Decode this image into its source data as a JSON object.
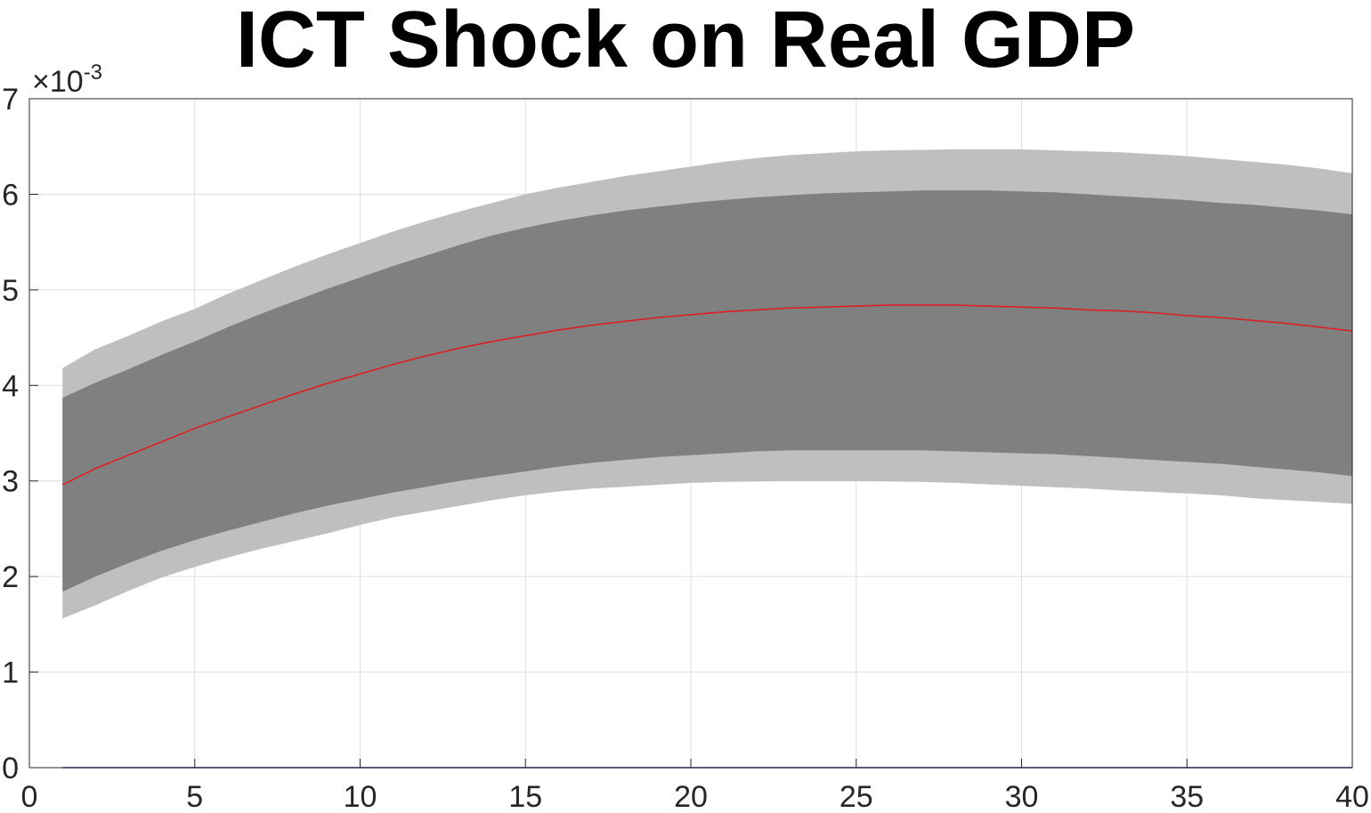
{
  "chart_data": {
    "type": "area",
    "title": "ICT Shock on Real GDP",
    "xlabel": "",
    "ylabel": "",
    "xlim": [
      0,
      40
    ],
    "ylim": [
      0,
      7
    ],
    "y_exponent_base": "×10",
    "y_exponent_power": "-3",
    "y_scale": 0.001,
    "grid": true,
    "x_ticks": [
      "0",
      "5",
      "10",
      "15",
      "20",
      "25",
      "30",
      "35",
      "40"
    ],
    "y_ticks": [
      "0",
      "1",
      "2",
      "3",
      "4",
      "5",
      "6",
      "7"
    ],
    "x": [
      1,
      2,
      3,
      4,
      5,
      6,
      7,
      8,
      9,
      10,
      11,
      12,
      13,
      14,
      15,
      16,
      17,
      18,
      19,
      20,
      21,
      22,
      23,
      24,
      25,
      26,
      27,
      28,
      29,
      30,
      31,
      32,
      33,
      34,
      35,
      36,
      37,
      38,
      39,
      40
    ],
    "series": [
      {
        "role": "outer_band",
        "color": "#bfbfbf",
        "lower": [
          1.56,
          1.7,
          1.85,
          1.99,
          2.1,
          2.2,
          2.29,
          2.37,
          2.45,
          2.54,
          2.62,
          2.68,
          2.74,
          2.8,
          2.85,
          2.89,
          2.92,
          2.94,
          2.96,
          2.98,
          2.99,
          2.995,
          3.0,
          3.0,
          3.0,
          2.995,
          2.99,
          2.98,
          2.965,
          2.95,
          2.935,
          2.92,
          2.9,
          2.885,
          2.87,
          2.85,
          2.82,
          2.8,
          2.78,
          2.76
        ],
        "upper": [
          4.18,
          4.38,
          4.52,
          4.67,
          4.8,
          4.96,
          5.1,
          5.24,
          5.37,
          5.49,
          5.61,
          5.72,
          5.82,
          5.91,
          6.0,
          6.07,
          6.13,
          6.19,
          6.24,
          6.29,
          6.34,
          6.38,
          6.41,
          6.43,
          6.45,
          6.46,
          6.465,
          6.47,
          6.47,
          6.47,
          6.46,
          6.45,
          6.44,
          6.42,
          6.4,
          6.37,
          6.34,
          6.31,
          6.27,
          6.22
        ]
      },
      {
        "role": "inner_band",
        "color": "#808080",
        "lower": [
          1.84,
          2.0,
          2.14,
          2.27,
          2.38,
          2.48,
          2.57,
          2.66,
          2.74,
          2.81,
          2.88,
          2.94,
          3.0,
          3.05,
          3.1,
          3.15,
          3.19,
          3.22,
          3.25,
          3.27,
          3.29,
          3.31,
          3.32,
          3.32,
          3.32,
          3.32,
          3.32,
          3.31,
          3.3,
          3.29,
          3.28,
          3.26,
          3.24,
          3.22,
          3.2,
          3.18,
          3.15,
          3.12,
          3.09,
          3.05
        ],
        "upper": [
          3.87,
          4.03,
          4.17,
          4.32,
          4.46,
          4.61,
          4.75,
          4.88,
          5.01,
          5.13,
          5.25,
          5.36,
          5.47,
          5.57,
          5.65,
          5.72,
          5.78,
          5.83,
          5.87,
          5.91,
          5.94,
          5.97,
          5.99,
          6.01,
          6.02,
          6.03,
          6.04,
          6.04,
          6.04,
          6.03,
          6.02,
          6.0,
          5.98,
          5.96,
          5.94,
          5.91,
          5.89,
          5.86,
          5.83,
          5.79
        ]
      },
      {
        "role": "median",
        "color": "#e31a1c",
        "values": [
          2.96,
          3.13,
          3.27,
          3.41,
          3.55,
          3.67,
          3.79,
          3.91,
          4.02,
          4.12,
          4.22,
          4.31,
          4.39,
          4.46,
          4.52,
          4.58,
          4.63,
          4.67,
          4.71,
          4.74,
          4.77,
          4.79,
          4.81,
          4.82,
          4.83,
          4.84,
          4.84,
          4.84,
          4.83,
          4.82,
          4.81,
          4.79,
          4.78,
          4.76,
          4.73,
          4.71,
          4.68,
          4.65,
          4.61,
          4.57
        ]
      },
      {
        "role": "zero_line",
        "color": "#1f1f9f",
        "values": [
          0,
          0,
          0,
          0,
          0,
          0,
          0,
          0,
          0,
          0,
          0,
          0,
          0,
          0,
          0,
          0,
          0,
          0,
          0,
          0,
          0,
          0,
          0,
          0,
          0,
          0,
          0,
          0,
          0,
          0,
          0,
          0,
          0,
          0,
          0,
          0,
          0,
          0,
          0,
          0
        ]
      }
    ]
  }
}
